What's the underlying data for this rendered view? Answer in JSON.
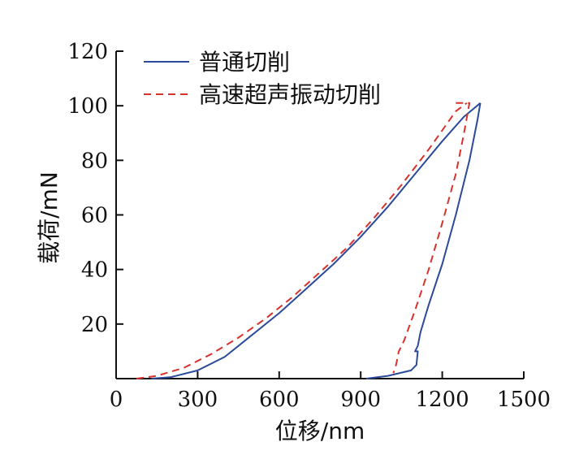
{
  "chart_data": {
    "type": "line",
    "title": "",
    "xlabel": "位移/nm",
    "ylabel": "载荷/mN",
    "xlim": [
      0,
      1500
    ],
    "ylim": [
      0,
      120
    ],
    "xticks": [
      0,
      300,
      600,
      900,
      1200,
      1500
    ],
    "yticks": [
      20,
      40,
      60,
      80,
      100,
      120
    ],
    "grid": false,
    "legend_position": "top-left",
    "series": [
      {
        "name": "普通切削",
        "color": "#2b4a9a",
        "style": "solid",
        "loading": {
          "x": [
            130,
            200,
            300,
            400,
            500,
            600,
            700,
            800,
            900,
            1000,
            1100,
            1200,
            1280,
            1340
          ],
          "y": [
            0,
            0.5,
            3,
            8,
            16,
            24,
            33,
            42,
            52,
            63,
            75,
            87,
            96,
            101
          ]
        },
        "unloading": {
          "x": [
            1340,
            1330,
            1300,
            1250,
            1200,
            1150,
            1120,
            1110,
            1100,
            1110,
            1105,
            1085,
            1000,
            920
          ],
          "y": [
            101,
            95,
            80,
            60,
            42,
            27,
            17,
            12,
            10,
            10,
            5,
            3,
            1,
            0
          ]
        }
      },
      {
        "name": "高速超声振动切削",
        "color": "#d8322c",
        "style": "dashed",
        "loading": {
          "x": [
            75,
            150,
            250,
            350,
            450,
            550,
            650,
            750,
            850,
            950,
            1050,
            1150,
            1250,
            1290
          ],
          "y": [
            0,
            1,
            4,
            9,
            15,
            22,
            30,
            39,
            48,
            59,
            71,
            84,
            98,
            101
          ]
        },
        "unloading": {
          "x": [
            1250,
            1300,
            1280,
            1250,
            1200,
            1150,
            1100,
            1060,
            1040,
            1030,
            1020
          ],
          "y": [
            101,
            101,
            90,
            75,
            57,
            40,
            25,
            14,
            10,
            5,
            2
          ]
        }
      }
    ]
  }
}
